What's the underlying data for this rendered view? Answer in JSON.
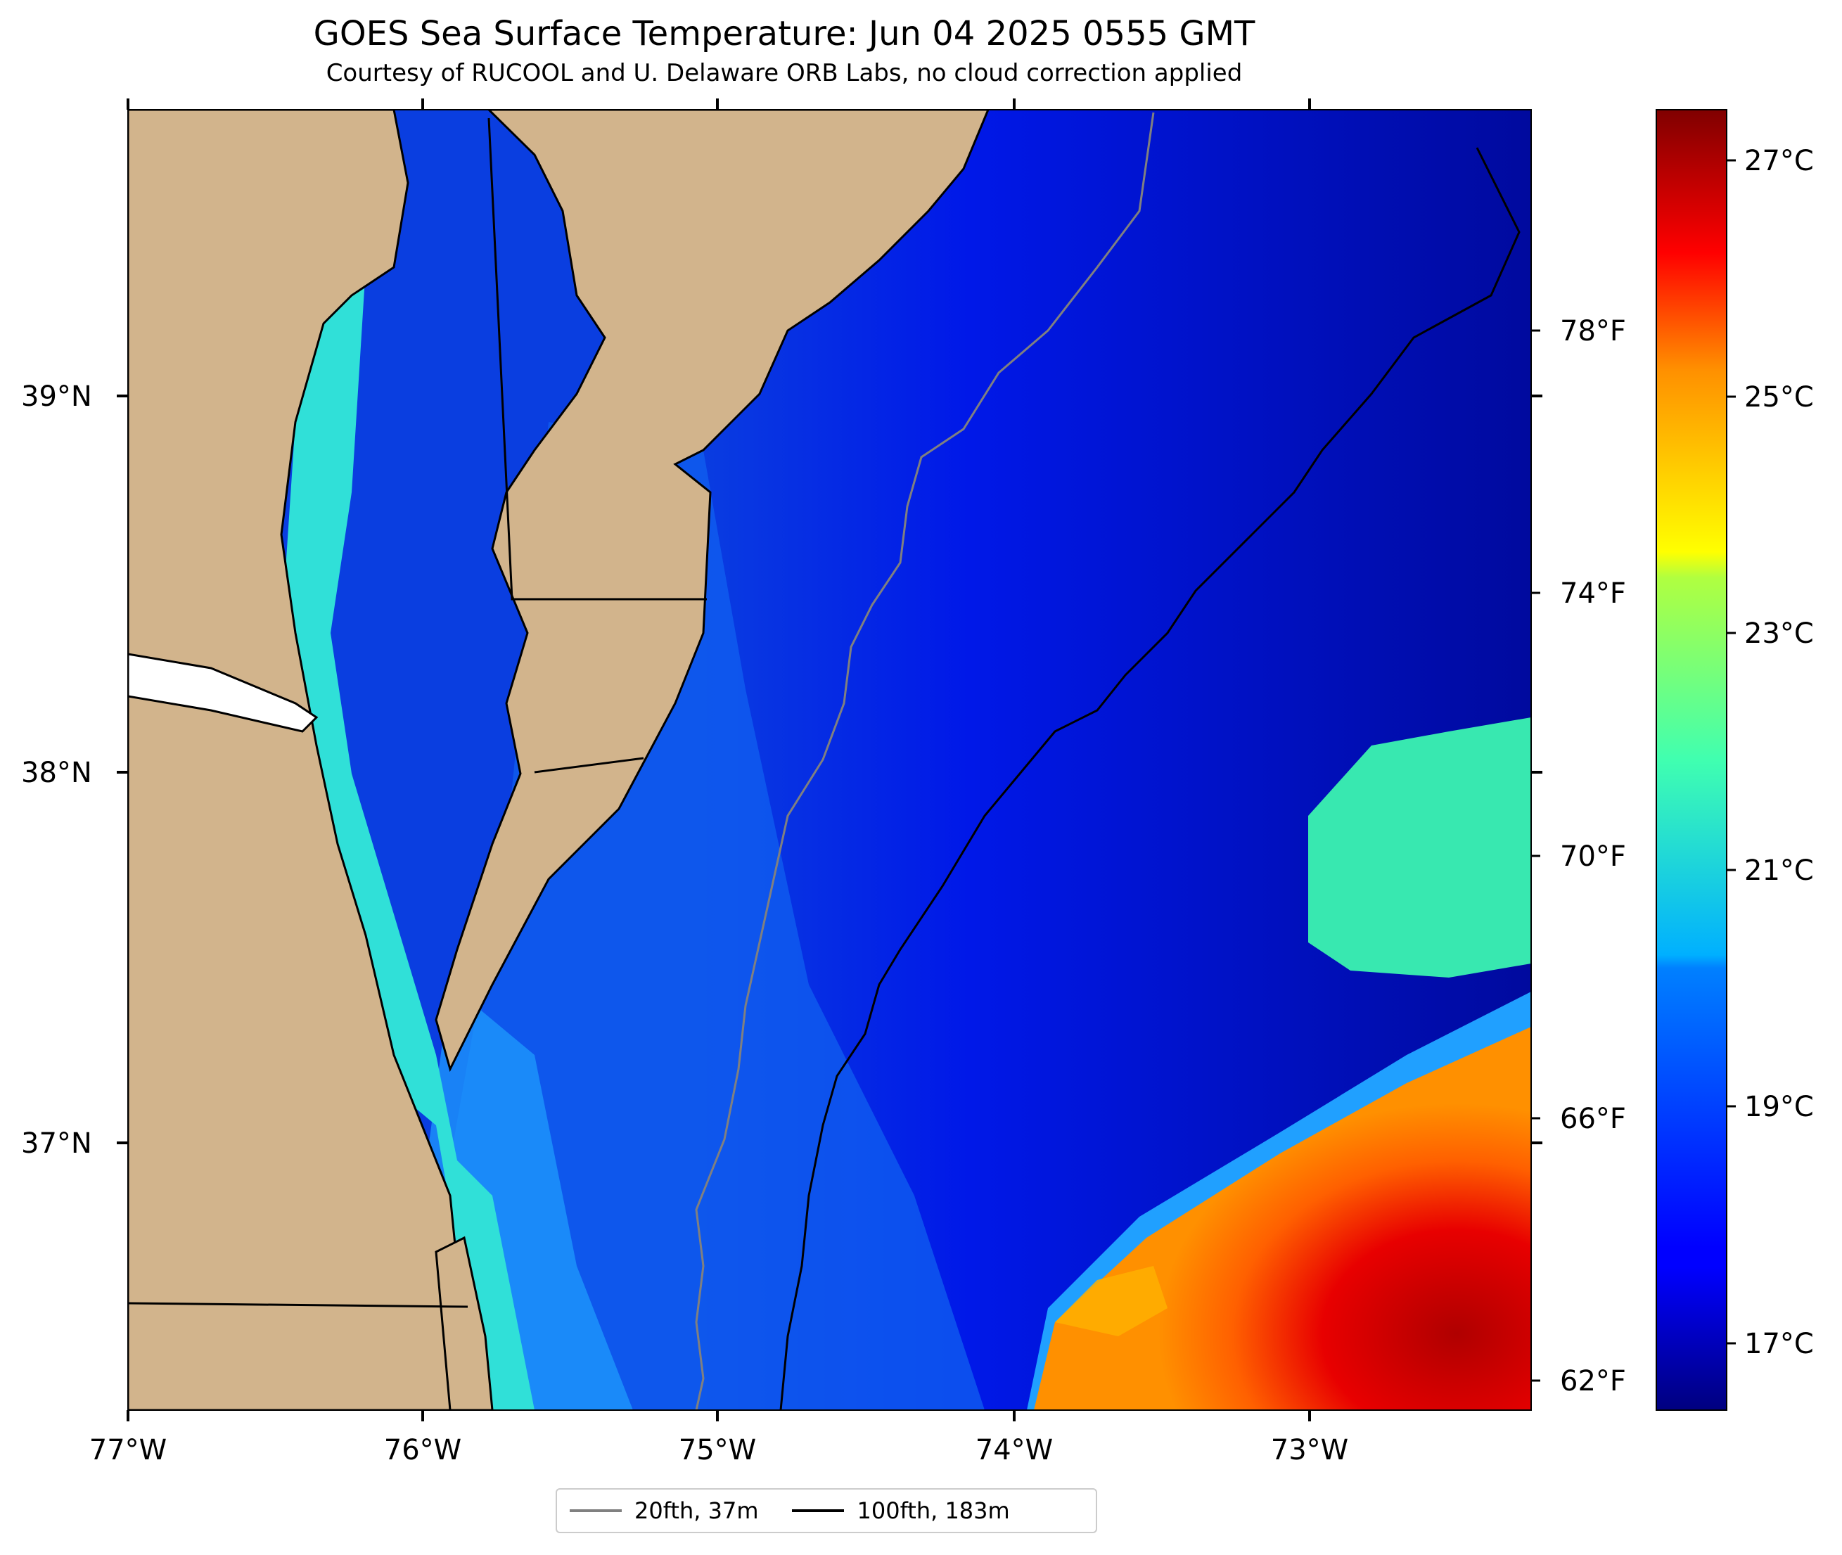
{
  "title": "GOES Sea Surface Temperature: Jun 04 2025 0555 GMT",
  "subtitle": "Courtesy of RUCOOL and U. Delaware ORB Labs, no cloud correction applied",
  "map": {
    "lon_labels": [
      "77°W",
      "76°W",
      "75°W",
      "74°W",
      "73°W"
    ],
    "lat_labels": [
      "39°N",
      "38°N",
      "37°N"
    ],
    "colors": {
      "land": "#d2b48c",
      "coastline": "#000000",
      "contour_20fth": "#808080",
      "contour_100fth": "#000000"
    }
  },
  "colorbar": {
    "celsius_labels": [
      "27°C",
      "25°C",
      "23°C",
      "21°C",
      "19°C",
      "17°C"
    ],
    "fahrenheit_labels": [
      "78°F",
      "74°F",
      "70°F",
      "66°F",
      "62°F"
    ],
    "colormap": "jet",
    "range_c": [
      16.5,
      27.5
    ]
  },
  "legend": {
    "items": [
      {
        "label": "20fth, 37m",
        "color": "#808080"
      },
      {
        "label": "100fth, 183m",
        "color": "#000000"
      }
    ]
  }
}
